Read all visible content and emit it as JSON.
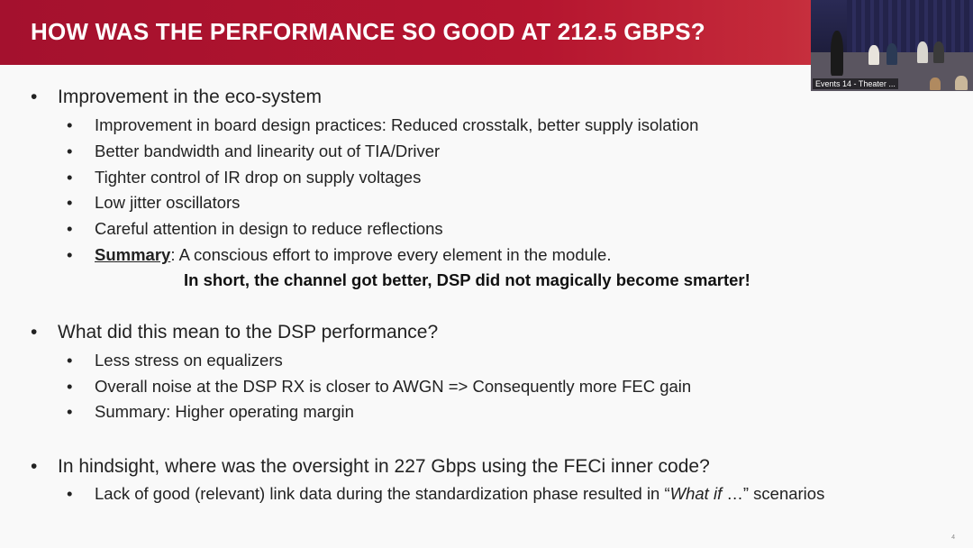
{
  "title": "HOW WAS THE PERFORMANCE SO GOOD AT 212.5 GBPS?",
  "video_overlay": {
    "label": "Events 14 - Theater ..."
  },
  "bullet_char": "•",
  "sections": [
    {
      "heading": "Improvement in the eco-system",
      "items": [
        "Improvement in board design practices: Reduced crosstalk, better supply isolation",
        "Better bandwidth and linearity out of TIA/Driver",
        "Tighter control of IR drop on supply voltages",
        "Low jitter oscillators",
        "Careful attention in design to reduce reflections"
      ],
      "summary": {
        "key": "Summary",
        "text": ": A conscious effort to improve every element in the module.",
        "emphasis": "In short, the channel got better, DSP did not magically become smarter!"
      }
    },
    {
      "heading": "What did this mean to the DSP performance?",
      "items": [
        "Less stress on equalizers",
        "Overall noise at the DSP RX is closer to AWGN => Consequently more FEC gain",
        "Summary: Higher operating margin"
      ]
    },
    {
      "heading": "In hindsight, where was the oversight in 227 Gbps using the FECi inner code?",
      "items_rich": [
        {
          "before": "Lack of good (relevant) link data during the standardization phase resulted in “",
          "italic": "What if",
          "after": " …” scenarios"
        }
      ]
    }
  ],
  "page_number": "4"
}
